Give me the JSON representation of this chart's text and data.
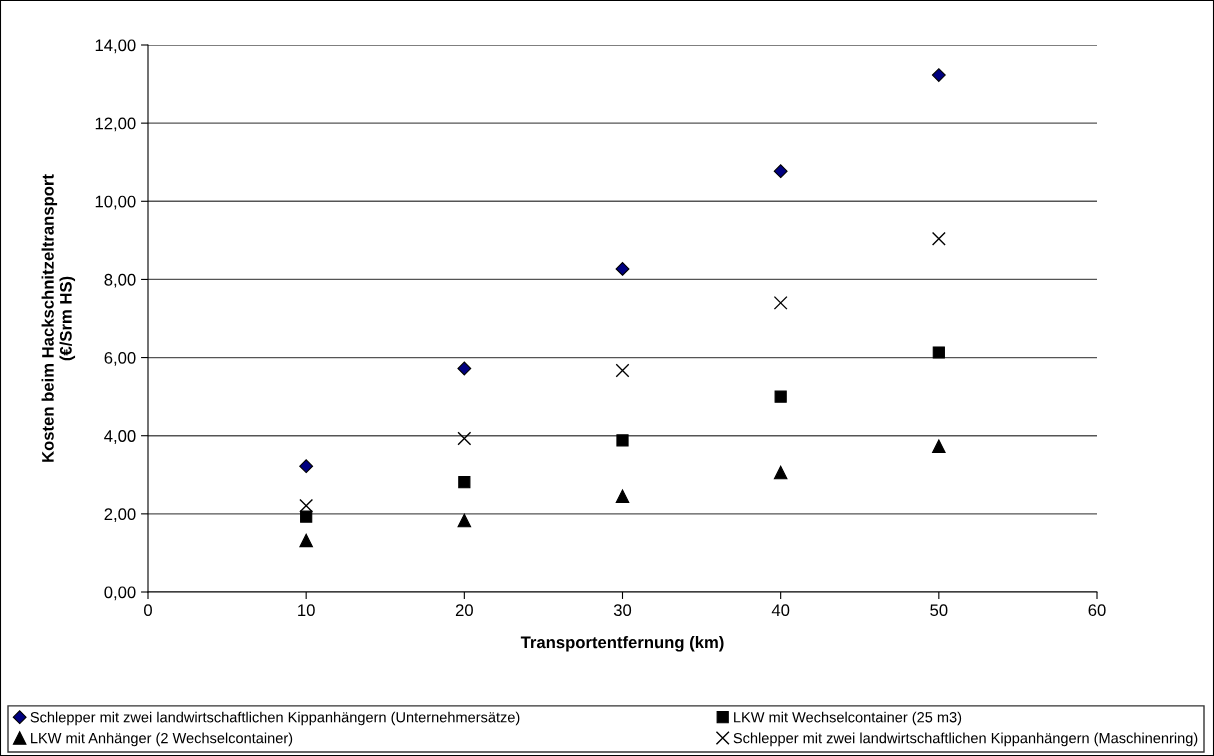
{
  "chart_data": {
    "type": "scatter",
    "xlabel": "Transportentfernung (km)",
    "ylabel": "Kosten beim Hackschnitzeltransport\n(€/Srm HS)",
    "x": [
      10,
      20,
      30,
      40,
      50
    ],
    "series": [
      {
        "name": "Schlepper mit zwei landwirtschaftlichen Kippanhängern (Unternehmersätze)",
        "color": "#000080",
        "marker": "diamond",
        "values": [
          3.22,
          5.72,
          8.27,
          10.77,
          13.23
        ]
      },
      {
        "name": "LKW mit Wechselcontainer (25 m3)",
        "color": "#000000",
        "marker": "square",
        "values": [
          1.93,
          2.81,
          3.88,
          5.0,
          6.13
        ]
      },
      {
        "name": "LKW mit Anhänger (2 Wechselcontainer)",
        "color": "#000000",
        "marker": "triangle",
        "values": [
          1.32,
          1.83,
          2.45,
          3.06,
          3.73
        ]
      },
      {
        "name": "Schlepper mit zwei landwirtschaftlichen Kippanhängern (Maschinenring)",
        "color": "#000000",
        "marker": "cross",
        "values": [
          2.21,
          3.93,
          5.67,
          7.4,
          9.04
        ]
      }
    ],
    "xlim": [
      0,
      60
    ],
    "xticks": [
      0,
      10,
      20,
      30,
      40,
      50,
      60
    ],
    "ylim": [
      0,
      14
    ],
    "yticks": [
      {
        "value": 0,
        "label": "0,00"
      },
      {
        "value": 2,
        "label": "2,00"
      },
      {
        "value": 4,
        "label": "4,00"
      },
      {
        "value": 6,
        "label": "6,00"
      },
      {
        "value": 8,
        "label": "8,00"
      },
      {
        "value": 10,
        "label": "10,00"
      },
      {
        "value": 12,
        "label": "12,00"
      },
      {
        "value": 14,
        "label": "14,00"
      }
    ],
    "grid": "y",
    "legend": "bottom"
  }
}
